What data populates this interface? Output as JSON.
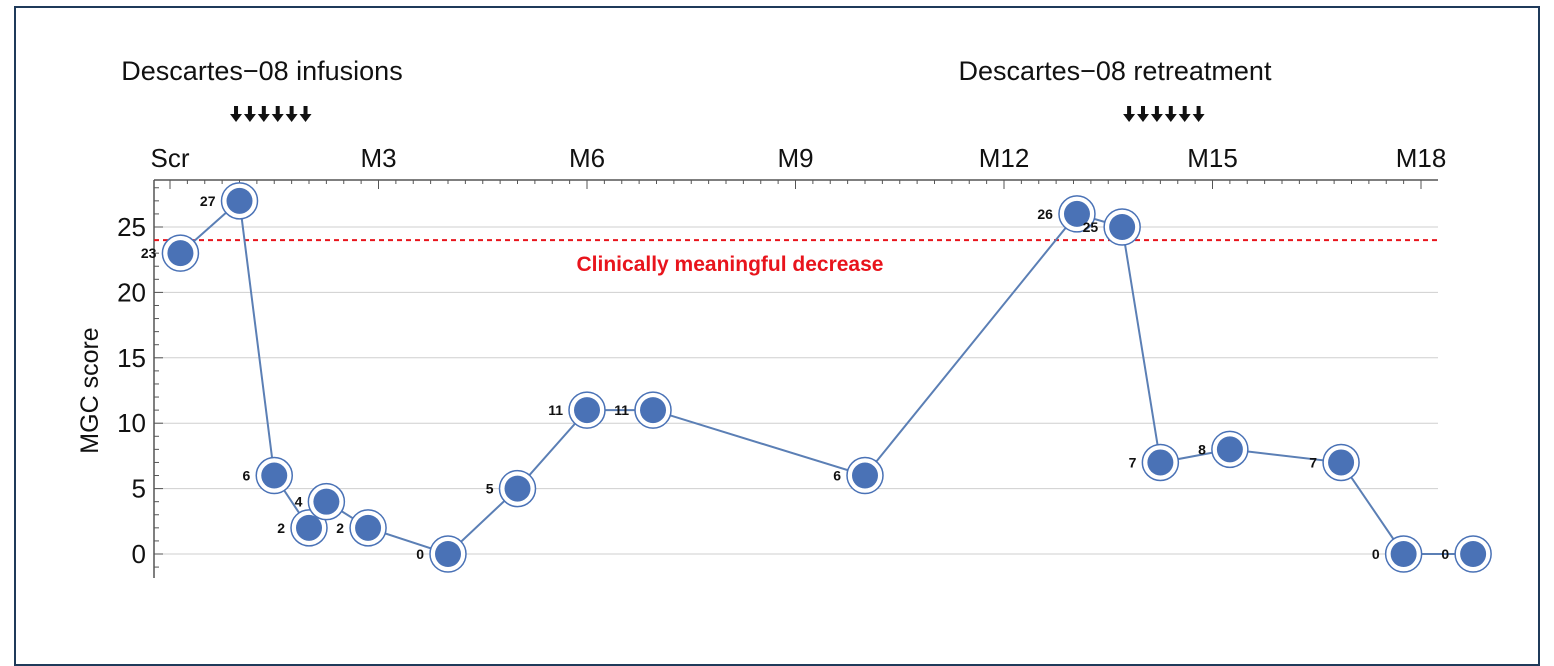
{
  "chart_data": {
    "type": "line",
    "ylabel": "MGC score",
    "ylim": [
      -2,
      28.5
    ],
    "yticks": [
      0,
      5,
      10,
      15,
      20,
      25
    ],
    "top_axis": {
      "ticks": [
        {
          "label": "Scr",
          "month": 0
        },
        {
          "label": "M3",
          "month": 3
        },
        {
          "label": "M6",
          "month": 6
        },
        {
          "label": "M9",
          "month": 9
        },
        {
          "label": "M12",
          "month": 12
        },
        {
          "label": "M15",
          "month": 15
        },
        {
          "label": "M18",
          "month": 18
        }
      ]
    },
    "annotations": {
      "infusions": {
        "label": "Descartes−08 infusions",
        "arrow_months": [
          0.95,
          1.15,
          1.35,
          1.55,
          1.75,
          1.95
        ]
      },
      "retreatment": {
        "label": "Descartes−08 retreatment",
        "arrow_months": [
          13.8,
          14.0,
          14.2,
          14.4,
          14.6,
          14.8
        ]
      }
    },
    "threshold": {
      "value": 24,
      "label": "Clinically meaningful decrease",
      "color": "#e8141c"
    },
    "series": [
      {
        "points": [
          {
            "month": 0.15,
            "value": 23
          },
          {
            "month": 1.0,
            "value": 27
          },
          {
            "month": 1.5,
            "value": 6
          },
          {
            "month": 2.0,
            "value": 2
          },
          {
            "month": 2.25,
            "value": 4
          },
          {
            "month": 2.85,
            "value": 2
          },
          {
            "month": 4.0,
            "value": 0
          },
          {
            "month": 5.0,
            "value": 5
          },
          {
            "month": 6.0,
            "value": 11
          },
          {
            "month": 6.95,
            "value": 11
          },
          {
            "month": 10.0,
            "value": 6
          },
          {
            "month": 13.05,
            "value": 26
          },
          {
            "month": 13.7,
            "value": 25
          },
          {
            "month": 14.25,
            "value": 7
          },
          {
            "month": 15.25,
            "value": 8
          },
          {
            "month": 16.85,
            "value": 7
          },
          {
            "month": 17.75,
            "value": 0
          },
          {
            "month": 18.75,
            "value": 0
          }
        ]
      }
    ],
    "colors": {
      "line": "#5b7fb5",
      "marker": "#4a72b6",
      "marker_ring": "#4a72b6",
      "grid": "#cfcfcf",
      "arrow": "#111111"
    }
  }
}
